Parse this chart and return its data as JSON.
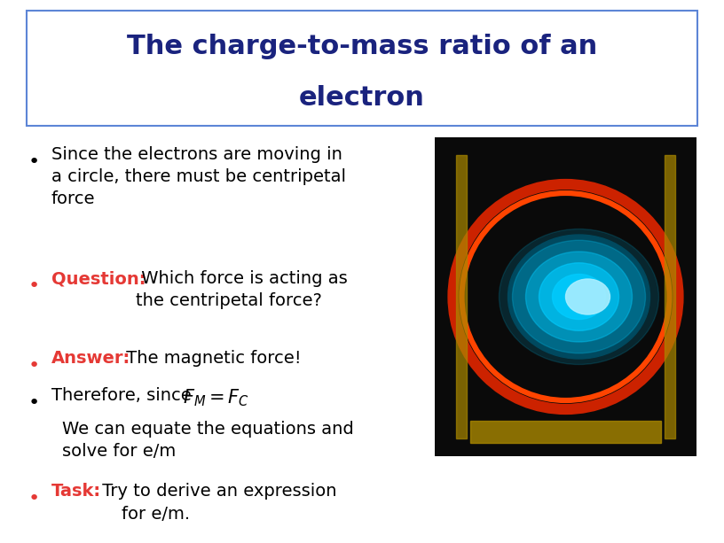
{
  "title_line1": "The charge-to-mass ratio of an",
  "title_line2": "electron",
  "title_color": "#1a237e",
  "title_fontsize": 22,
  "title_box_color": "#ffffff",
  "title_box_edge": "#5c85d6",
  "bg_color": "#ffffff",
  "bullet_color": "#000000",
  "highlight_color": "#e53935",
  "bullet_fontsize": 14,
  "bullets": [
    {
      "parts": [
        {
          "text": "Since the electrons are moving in\na circle, there must be centripetal\nforce",
          "color": "#000000",
          "bold": false
        }
      ]
    },
    {
      "parts": [
        {
          "text": "Question:",
          "color": "#e53935",
          "bold": true
        },
        {
          "text": " Which force is acting as\nthe centripetal force?",
          "color": "#000000",
          "bold": false
        }
      ]
    },
    {
      "parts": [
        {
          "text": "Answer:",
          "color": "#e53935",
          "bold": true
        },
        {
          "text": " The magnetic force!",
          "color": "#000000",
          "bold": false
        }
      ]
    },
    {
      "parts": [
        {
          "text": "Therefore, since  ",
          "color": "#000000",
          "bold": false
        },
        {
          "text": "F",
          "color": "#000000",
          "bold": true,
          "italic": true
        },
        {
          "text": "M",
          "color": "#000000",
          "bold": false,
          "subscript": true
        },
        {
          "text": " = ",
          "color": "#000000",
          "bold": true,
          "italic": true
        },
        {
          "text": "F",
          "color": "#000000",
          "bold": true,
          "italic": true
        },
        {
          "text": "C",
          "color": "#000000",
          "bold": false,
          "subscript": true
        }
      ]
    },
    {
      "parts": [
        {
          "text": "We can equate the equations and\nsolve for e/m",
          "color": "#000000",
          "bold": false
        }
      ],
      "indent": true
    },
    {
      "parts": [
        {
          "text": "Task:",
          "color": "#e53935",
          "bold": true
        },
        {
          "text": " Try to derive an expression\n        for e/m.",
          "color": "#000000",
          "bold": false
        }
      ]
    }
  ],
  "image_url": "https://upload.wikimedia.org/wikipedia/commons/thumb/b/b8/Cyclotron_patent.png/320px-Cyclotron_patent.png"
}
